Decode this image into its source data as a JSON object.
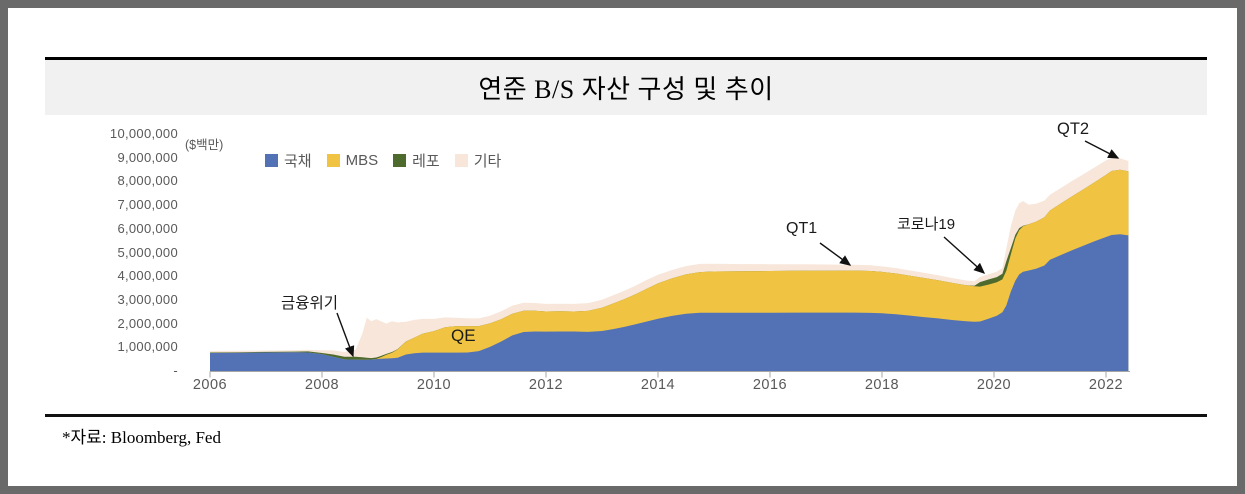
{
  "title": "연준 B/S 자산 구성 및 추이",
  "unit_label": "($백만)",
  "source_note": "*자료: Bloomberg, Fed",
  "colors": {
    "treasury": "#5272b5",
    "mbs": "#f0c342",
    "repo": "#4e6b2d",
    "other": "#f7e6d9",
    "axis_text": "#595959",
    "axis_line": "#a6a6a6",
    "title_band_bg": "#f1f1f1",
    "frame_border": "#6a6a6a",
    "annotation": "#1a1a1a"
  },
  "legend": [
    {
      "key": "treasury",
      "label": "국채"
    },
    {
      "key": "mbs",
      "label": "MBS"
    },
    {
      "key": "repo",
      "label": "레포"
    },
    {
      "key": "other",
      "label": "기타"
    }
  ],
  "annotations": {
    "crisis": "금융위기",
    "qe": "QE",
    "qt1": "QT1",
    "covid": "코로나19",
    "qt2": "QT2"
  },
  "y_axis": {
    "tick_labels": [
      "10,000,000",
      "9,000,000",
      "8,000,000",
      "7,000,000",
      "6,000,000",
      "5,000,000",
      "4,000,000",
      "3,000,000",
      "2,000,000",
      "1,000,000",
      "-"
    ],
    "max": 10000000,
    "min": 0
  },
  "x_axis": {
    "years": [
      2006,
      2008,
      2010,
      2012,
      2014,
      2016,
      2018,
      2020,
      2022
    ]
  },
  "chart_data": {
    "type": "area",
    "stacked": true,
    "title": "연준 B/S 자산 구성 및 추이",
    "ylabel": "($백만)",
    "ylim": [
      0,
      10000000
    ],
    "xlim": [
      2006,
      2022.4
    ],
    "grid": false,
    "legend_position": "top-left-inside",
    "x": [
      2006.0,
      2006.5,
      2007.0,
      2007.5,
      2007.75,
      2008.0,
      2008.2,
      2008.4,
      2008.6,
      2008.72,
      2008.8,
      2008.88,
      2008.97,
      2009.05,
      2009.15,
      2009.25,
      2009.35,
      2009.5,
      2009.65,
      2009.8,
      2010.0,
      2010.2,
      2010.4,
      2010.6,
      2010.8,
      2011.0,
      2011.2,
      2011.4,
      2011.6,
      2011.8,
      2012.0,
      2012.25,
      2012.5,
      2012.75,
      2013.0,
      2013.2,
      2013.4,
      2013.6,
      2013.8,
      2014.0,
      2014.25,
      2014.5,
      2014.75,
      2015.0,
      2015.5,
      2016.0,
      2016.5,
      2017.0,
      2017.5,
      2017.8,
      2018.0,
      2018.25,
      2018.5,
      2018.75,
      2019.0,
      2019.25,
      2019.5,
      2019.65,
      2019.75,
      2019.9,
      2020.05,
      2020.15,
      2020.22,
      2020.3,
      2020.38,
      2020.45,
      2020.52,
      2020.62,
      2020.75,
      2020.9,
      2021.0,
      2021.2,
      2021.4,
      2021.6,
      2021.8,
      2022.0,
      2022.1,
      2022.25,
      2022.4
    ],
    "series": [
      {
        "name": "국채",
        "key": "treasury",
        "color": "#5272b5",
        "values": [
          760000,
          768000,
          779000,
          790000,
          780000,
          713000,
          600000,
          490000,
          479000,
          476000,
          476000,
          486000,
          500000,
          515000,
          526000,
          537000,
          560000,
          695000,
          745000,
          776000,
          776000,
          777000,
          777000,
          779000,
          841000,
          1016000,
          1243000,
          1500000,
          1645000,
          1665000,
          1663000,
          1665000,
          1666000,
          1651000,
          1687000,
          1767000,
          1860000,
          1970000,
          2090000,
          2208000,
          2325000,
          2416000,
          2461000,
          2461000,
          2461000,
          2461000,
          2463000,
          2464000,
          2465000,
          2453000,
          2436000,
          2396000,
          2337000,
          2274000,
          2219000,
          2151000,
          2095000,
          2080000,
          2088000,
          2206000,
          2329000,
          2480000,
          2764000,
          3350000,
          3810000,
          4075000,
          4185000,
          4240000,
          4316000,
          4451000,
          4690000,
          4900000,
          5100000,
          5290000,
          5480000,
          5652000,
          5740000,
          5770000,
          5720000
        ]
      },
      {
        "name": "MBS",
        "key": "mbs",
        "color": "#f0c342",
        "values": [
          0,
          0,
          0,
          0,
          0,
          0,
          0,
          0,
          0,
          0,
          0,
          0,
          5000,
          65000,
          160000,
          236000,
          350000,
          545000,
          665000,
          800000,
          908000,
          1066000,
          1117000,
          1108000,
          1052000,
          992000,
          944000,
          917000,
          898000,
          874000,
          848000,
          853000,
          844000,
          884000,
          983000,
          1081000,
          1175000,
          1270000,
          1380000,
          1490000,
          1583000,
          1662000,
          1712000,
          1737000,
          1746000,
          1758000,
          1768000,
          1770000,
          1772000,
          1768000,
          1744000,
          1718000,
          1683000,
          1652000,
          1611000,
          1567000,
          1526000,
          1495000,
          1472000,
          1441000,
          1418000,
          1385000,
          1458000,
          1566000,
          1780000,
          1862000,
          1921000,
          1949000,
          1982000,
          2039000,
          2083000,
          2182000,
          2280000,
          2382000,
          2490000,
          2622000,
          2700000,
          2725000,
          2700000
        ]
      },
      {
        "name": "레포",
        "key": "repo",
        "color": "#4e6b2d",
        "values": [
          22000,
          24000,
          26000,
          28000,
          45000,
          46000,
          95000,
          115000,
          125000,
          100000,
          80000,
          60000,
          65000,
          55000,
          35000,
          28000,
          15000,
          5000,
          0,
          0,
          0,
          0,
          0,
          0,
          0,
          0,
          0,
          0,
          0,
          0,
          0,
          0,
          0,
          0,
          0,
          0,
          0,
          0,
          0,
          0,
          0,
          0,
          0,
          0,
          0,
          0,
          0,
          0,
          0,
          0,
          0,
          0,
          0,
          0,
          0,
          0,
          0,
          20000,
          190000,
          213000,
          216000,
          242000,
          412000,
          263000,
          158000,
          92000,
          22000,
          0,
          0,
          0,
          0,
          0,
          0,
          0,
          0,
          0,
          0,
          0,
          0
        ]
      },
      {
        "name": "기타",
        "key": "other",
        "color": "#f7e6d9",
        "values": [
          62000,
          62000,
          62000,
          64000,
          70000,
          115000,
          175000,
          195000,
          290000,
          1000000,
          1694000,
          1554000,
          1620000,
          1465000,
          1279000,
          1299000,
          1125000,
          830000,
          745000,
          624000,
          516000,
          417000,
          356000,
          333000,
          327000,
          322000,
          333000,
          343000,
          337000,
          331000,
          320000,
          318000,
          322000,
          328000,
          338000,
          347000,
          355000,
          363000,
          372000,
          360000,
          355000,
          350000,
          345000,
          325000,
          305000,
          288000,
          272000,
          258000,
          246000,
          240000,
          234000,
          228000,
          222000,
          216000,
          210000,
          204000,
          198000,
          196000,
          214000,
          222000,
          227000,
          240000,
          531000,
          921000,
          1012000,
          1051000,
          1042000,
          831000,
          762000,
          700000,
          662000,
          650000,
          644000,
          637000,
          628000,
          612000,
          540000,
          480000,
          440000
        ]
      }
    ]
  }
}
